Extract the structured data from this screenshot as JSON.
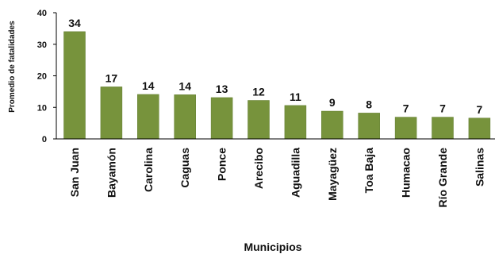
{
  "chart_data": {
    "type": "bar",
    "title": "",
    "xlabel": "Municipios",
    "ylabel": "Promedio de fatalidades",
    "ylim": [
      0,
      40
    ],
    "yticks": [
      0,
      10,
      20,
      30,
      40
    ],
    "grid": false,
    "legend": "none",
    "categories": [
      "San Juan",
      "Bayamón",
      "Carolina",
      "Caguas",
      "Ponce",
      "Arecibo",
      "Aguadilla",
      "Mayagüez",
      "Toa Baja",
      "Humacao",
      "Río Grande",
      "Salinas"
    ],
    "values": [
      34,
      16.5,
      14.1,
      14,
      13.1,
      12.2,
      10.6,
      8.8,
      8.2,
      6.9,
      6.9,
      6.6
    ],
    "value_labels": [
      "34",
      "17",
      "14",
      "14",
      "13",
      "12",
      "11",
      "9",
      "8",
      "7",
      "7",
      "7"
    ],
    "bar_color": "#77933c",
    "bar_edge_color": "#5f7a2c"
  }
}
